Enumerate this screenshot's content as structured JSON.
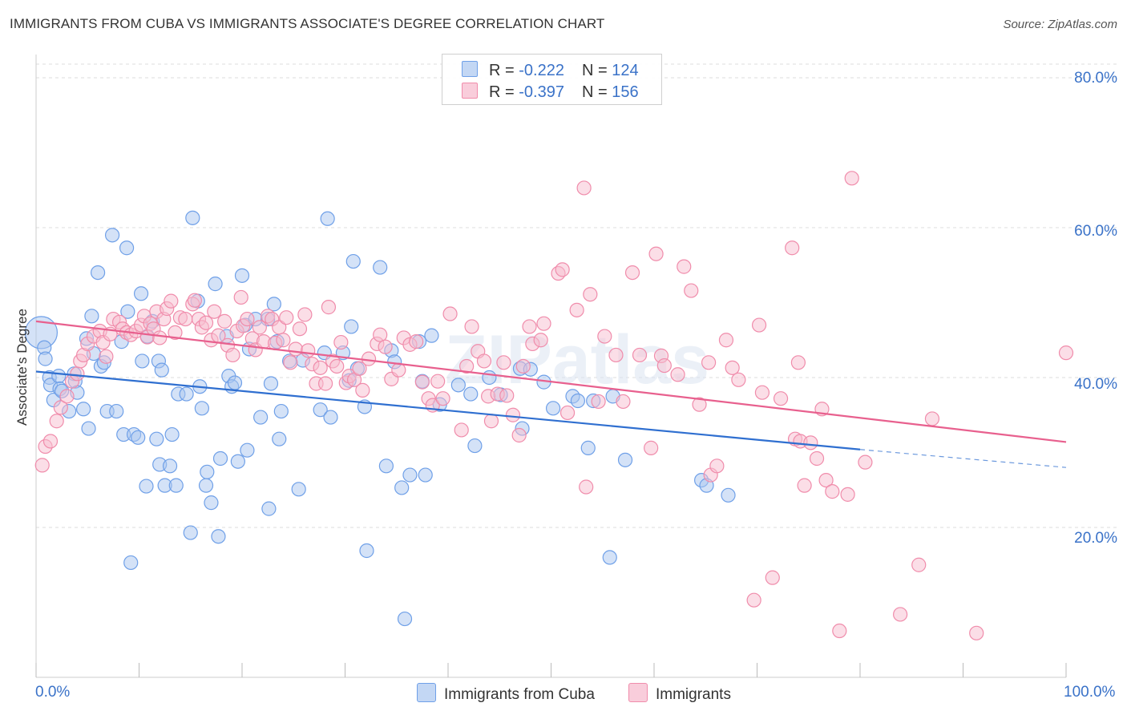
{
  "title": "IMMIGRANTS FROM CUBA VS IMMIGRANTS ASSOCIATE'S DEGREE CORRELATION CHART",
  "source": "Source: ZipAtlas.com",
  "watermark": "ZIPatlas",
  "legend_top": {
    "rows": [
      {
        "r_label": "R = ",
        "r_value": "-0.222",
        "n_label": "N = ",
        "n_value": "124",
        "color": "#6fa0e8"
      },
      {
        "r_label": "R = ",
        "r_value": "-0.397",
        "n_label": "N = ",
        "n_value": "156",
        "color": "#f08cab"
      }
    ]
  },
  "legend_bottom": [
    "Immigrants from Cuba",
    "Immigrants"
  ],
  "x_ticks": [
    "0.0%",
    "100.0%"
  ],
  "y_ticks": [
    "80.0%",
    "60.0%",
    "40.0%",
    "20.0%"
  ],
  "y_label": "Associate's Degree",
  "chart_data": {
    "type": "scatter",
    "xlabel": "",
    "ylabel": "Associate's Degree",
    "xlim": [
      0,
      100
    ],
    "ylim": [
      0,
      80
    ],
    "grid": true,
    "legend_placement": "bottom",
    "series": [
      {
        "name": "Immigrants from Cuba",
        "color": "#6fa0e8",
        "r": -0.222,
        "n": 124,
        "trend": {
          "x0": 0,
          "y0": 40.8,
          "x1": 80,
          "y1": 30.4,
          "dashed_to": 100,
          "dashed_y": 28.0
        },
        "points": [
          [
            0.5,
            46
          ],
          [
            0.8,
            44
          ],
          [
            0.9,
            42.5
          ],
          [
            1.3,
            40
          ],
          [
            1.4,
            39
          ],
          [
            1.7,
            37
          ],
          [
            2.2,
            40.2
          ],
          [
            2.3,
            38.5
          ],
          [
            2.5,
            38.2
          ],
          [
            3.2,
            35.5
          ],
          [
            3.7,
            40.5
          ],
          [
            3.8,
            39.5
          ],
          [
            4.0,
            38.0
          ],
          [
            4.6,
            35.8
          ],
          [
            4.9,
            45.2
          ],
          [
            5.1,
            33.2
          ],
          [
            5.4,
            48.2
          ],
          [
            5.6,
            43.2
          ],
          [
            6.0,
            54.0
          ],
          [
            6.3,
            41.5
          ],
          [
            6.6,
            42.0
          ],
          [
            6.9,
            35.5
          ],
          [
            7.4,
            59.0
          ],
          [
            7.8,
            35.5
          ],
          [
            8.3,
            44.8
          ],
          [
            8.5,
            32.4
          ],
          [
            8.8,
            57.3
          ],
          [
            8.9,
            48.8
          ],
          [
            9.2,
            15.3
          ],
          [
            9.5,
            32.4
          ],
          [
            9.9,
            32.0
          ],
          [
            10.2,
            51.2
          ],
          [
            10.3,
            42.2
          ],
          [
            10.7,
            25.5
          ],
          [
            10.8,
            45.5
          ],
          [
            11.3,
            47.5
          ],
          [
            11.7,
            31.8
          ],
          [
            11.9,
            42.2
          ],
          [
            12.0,
            28.4
          ],
          [
            12.2,
            41.0
          ],
          [
            12.5,
            25.6
          ],
          [
            13.0,
            28.2
          ],
          [
            13.2,
            32.4
          ],
          [
            13.6,
            25.6
          ],
          [
            13.8,
            37.8
          ],
          [
            14.6,
            37.8
          ],
          [
            15.0,
            19.3
          ],
          [
            15.2,
            61.3
          ],
          [
            15.7,
            50.2
          ],
          [
            15.9,
            38.8
          ],
          [
            16.1,
            35.9
          ],
          [
            16.5,
            25.6
          ],
          [
            16.6,
            27.4
          ],
          [
            17.0,
            23.3
          ],
          [
            17.4,
            52.5
          ],
          [
            17.7,
            18.8
          ],
          [
            17.9,
            29.2
          ],
          [
            18.5,
            45.5
          ],
          [
            18.7,
            40.2
          ],
          [
            19.0,
            38.8
          ],
          [
            19.3,
            39.3
          ],
          [
            19.6,
            28.8
          ],
          [
            20.0,
            53.6
          ],
          [
            20.3,
            47.0
          ],
          [
            20.5,
            30.3
          ],
          [
            20.7,
            43.8
          ],
          [
            21.3,
            47.8
          ],
          [
            21.8,
            34.7
          ],
          [
            22.5,
            47.8
          ],
          [
            22.6,
            22.5
          ],
          [
            22.8,
            39.2
          ],
          [
            23.1,
            49.8
          ],
          [
            23.4,
            44.8
          ],
          [
            23.6,
            31.8
          ],
          [
            23.8,
            35.5
          ],
          [
            24.6,
            42.2
          ],
          [
            25.5,
            25.1
          ],
          [
            25.9,
            42.3
          ],
          [
            27.6,
            35.7
          ],
          [
            28.0,
            43.3
          ],
          [
            28.3,
            61.2
          ],
          [
            28.6,
            34.7
          ],
          [
            29.8,
            43.3
          ],
          [
            30.4,
            39.6
          ],
          [
            30.6,
            46.8
          ],
          [
            30.8,
            55.5
          ],
          [
            31.2,
            41.2
          ],
          [
            31.9,
            36.1
          ],
          [
            32.1,
            16.9
          ],
          [
            33.4,
            54.7
          ],
          [
            34.0,
            28.2
          ],
          [
            34.5,
            43.6
          ],
          [
            34.8,
            42.1
          ],
          [
            35.5,
            25.3
          ],
          [
            35.8,
            7.8
          ],
          [
            36.3,
            27.0
          ],
          [
            37.2,
            44.8
          ],
          [
            37.5,
            39.5
          ],
          [
            37.8,
            27.0
          ],
          [
            38.4,
            45.6
          ],
          [
            39.2,
            36.4
          ],
          [
            41.0,
            39.0
          ],
          [
            42.2,
            37.8
          ],
          [
            42.6,
            30.9
          ],
          [
            44.0,
            40.0
          ],
          [
            45.1,
            37.7
          ],
          [
            47.2,
            33.2
          ],
          [
            47.0,
            41.2
          ],
          [
            48.0,
            41.1
          ],
          [
            49.3,
            39.4
          ],
          [
            50.2,
            35.9
          ],
          [
            52.1,
            37.5
          ],
          [
            52.6,
            36.9
          ],
          [
            53.6,
            30.6
          ],
          [
            54.1,
            36.9
          ],
          [
            55.7,
            16.0
          ],
          [
            56.0,
            37.5
          ],
          [
            57.2,
            29.0
          ],
          [
            64.6,
            26.3
          ],
          [
            65.1,
            25.6
          ],
          [
            67.2,
            24.3
          ]
        ]
      },
      {
        "name": "Immigrants",
        "color": "#f08cab",
        "r": -0.397,
        "n": 156,
        "trend": {
          "x0": 0,
          "y0": 47.5,
          "x1": 100,
          "y1": 31.4
        },
        "points": [
          [
            0.6,
            28.3
          ],
          [
            0.9,
            30.8
          ],
          [
            1.4,
            31.5
          ],
          [
            2.0,
            34.2
          ],
          [
            2.4,
            36.0
          ],
          [
            3.0,
            37.5
          ],
          [
            3.5,
            39.5
          ],
          [
            4.0,
            40.5
          ],
          [
            4.3,
            42.2
          ],
          [
            4.6,
            43.0
          ],
          [
            5.0,
            44.5
          ],
          [
            5.6,
            45.5
          ],
          [
            6.2,
            46.2
          ],
          [
            6.5,
            44.7
          ],
          [
            6.8,
            42.8
          ],
          [
            7.2,
            45.8
          ],
          [
            7.5,
            47.8
          ],
          [
            8.1,
            47.4
          ],
          [
            8.4,
            46.5
          ],
          [
            8.8,
            46.0
          ],
          [
            9.2,
            45.7
          ],
          [
            9.7,
            46.2
          ],
          [
            10.2,
            47.0
          ],
          [
            10.5,
            48.2
          ],
          [
            10.8,
            45.4
          ],
          [
            11.1,
            47.2
          ],
          [
            11.4,
            46.5
          ],
          [
            11.7,
            48.8
          ],
          [
            12.0,
            45.3
          ],
          [
            12.4,
            47.8
          ],
          [
            12.7,
            49.2
          ],
          [
            13.1,
            50.2
          ],
          [
            13.5,
            46.0
          ],
          [
            14.0,
            48.0
          ],
          [
            14.5,
            47.8
          ],
          [
            15.2,
            49.8
          ],
          [
            15.4,
            50.3
          ],
          [
            15.8,
            47.8
          ],
          [
            16.1,
            46.7
          ],
          [
            16.5,
            47.3
          ],
          [
            17.0,
            45.0
          ],
          [
            17.3,
            48.8
          ],
          [
            17.7,
            45.6
          ],
          [
            18.3,
            47.5
          ],
          [
            18.6,
            44.3
          ],
          [
            19.1,
            43.0
          ],
          [
            19.5,
            46.2
          ],
          [
            19.9,
            50.7
          ],
          [
            20.1,
            46.9
          ],
          [
            20.5,
            47.8
          ],
          [
            21.0,
            45.2
          ],
          [
            21.3,
            43.7
          ],
          [
            21.7,
            46.7
          ],
          [
            22.1,
            44.8
          ],
          [
            22.5,
            48.2
          ],
          [
            22.9,
            47.8
          ],
          [
            23.2,
            44.6
          ],
          [
            23.6,
            46.7
          ],
          [
            24.0,
            45.0
          ],
          [
            24.3,
            48.0
          ],
          [
            24.7,
            42.0
          ],
          [
            25.2,
            43.8
          ],
          [
            25.6,
            46.5
          ],
          [
            26.1,
            48.4
          ],
          [
            26.4,
            43.6
          ],
          [
            26.8,
            41.8
          ],
          [
            27.2,
            39.2
          ],
          [
            27.6,
            41.3
          ],
          [
            28.1,
            39.2
          ],
          [
            28.4,
            49.4
          ],
          [
            28.8,
            42.2
          ],
          [
            29.2,
            41.5
          ],
          [
            29.6,
            44.7
          ],
          [
            30.1,
            39.3
          ],
          [
            30.4,
            40.2
          ],
          [
            30.9,
            39.7
          ],
          [
            31.4,
            41.2
          ],
          [
            31.7,
            38.3
          ],
          [
            32.3,
            42.5
          ],
          [
            33.1,
            44.5
          ],
          [
            33.4,
            45.7
          ],
          [
            33.9,
            44.1
          ],
          [
            34.5,
            39.8
          ],
          [
            35.2,
            41.0
          ],
          [
            35.7,
            45.3
          ],
          [
            36.3,
            44.4
          ],
          [
            36.9,
            44.8
          ],
          [
            37.5,
            39.4
          ],
          [
            38.1,
            37.2
          ],
          [
            38.5,
            36.3
          ],
          [
            39.0,
            39.5
          ],
          [
            39.5,
            37.2
          ],
          [
            40.2,
            48.5
          ],
          [
            41.3,
            33.0
          ],
          [
            41.8,
            41.5
          ],
          [
            42.3,
            46.8
          ],
          [
            42.9,
            43.5
          ],
          [
            43.5,
            42.2
          ],
          [
            43.9,
            37.5
          ],
          [
            44.2,
            34.2
          ],
          [
            44.8,
            37.8
          ],
          [
            45.4,
            42.0
          ],
          [
            45.7,
            37.6
          ],
          [
            46.3,
            35.0
          ],
          [
            46.9,
            32.3
          ],
          [
            47.3,
            41.5
          ],
          [
            47.9,
            46.8
          ],
          [
            48.2,
            44.5
          ],
          [
            49.0,
            45.0
          ],
          [
            49.3,
            47.2
          ],
          [
            50.7,
            53.9
          ],
          [
            51.1,
            54.4
          ],
          [
            51.6,
            35.3
          ],
          [
            52.5,
            49.0
          ],
          [
            53.2,
            65.3
          ],
          [
            53.4,
            25.4
          ],
          [
            53.8,
            51.1
          ],
          [
            54.6,
            36.8
          ],
          [
            55.2,
            45.5
          ],
          [
            56.3,
            43.0
          ],
          [
            57.0,
            36.8
          ],
          [
            57.9,
            54.0
          ],
          [
            58.6,
            43.0
          ],
          [
            59.7,
            30.6
          ],
          [
            60.2,
            56.5
          ],
          [
            60.7,
            42.9
          ],
          [
            61.0,
            41.6
          ],
          [
            62.3,
            40.4
          ],
          [
            62.9,
            54.8
          ],
          [
            63.6,
            51.6
          ],
          [
            64.4,
            36.4
          ],
          [
            65.3,
            42.0
          ],
          [
            65.5,
            27.0
          ],
          [
            66.1,
            28.2
          ],
          [
            67.0,
            45.0
          ],
          [
            67.6,
            41.3
          ],
          [
            68.2,
            39.7
          ],
          [
            69.7,
            10.3
          ],
          [
            70.2,
            47.0
          ],
          [
            70.5,
            38.0
          ],
          [
            71.5,
            13.3
          ],
          [
            72.3,
            37.2
          ],
          [
            73.4,
            57.3
          ],
          [
            73.7,
            31.8
          ],
          [
            74.0,
            42.0
          ],
          [
            74.2,
            31.5
          ],
          [
            74.6,
            25.6
          ],
          [
            75.2,
            31.3
          ],
          [
            75.8,
            29.2
          ],
          [
            76.3,
            35.8
          ],
          [
            76.7,
            26.3
          ],
          [
            77.3,
            24.8
          ],
          [
            78.0,
            6.2
          ],
          [
            78.8,
            24.4
          ],
          [
            79.2,
            66.6
          ],
          [
            80.5,
            28.7
          ],
          [
            83.9,
            8.4
          ],
          [
            85.7,
            15.0
          ],
          [
            87.0,
            34.5
          ],
          [
            91.3,
            5.9
          ],
          [
            100.0,
            43.3
          ]
        ]
      }
    ]
  }
}
